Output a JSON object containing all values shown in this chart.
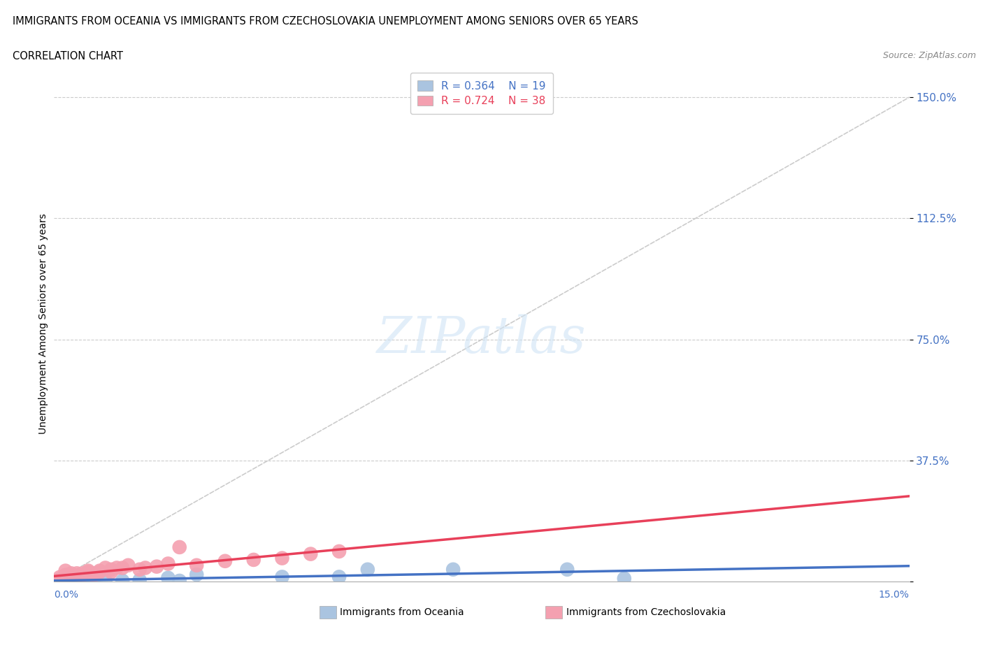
{
  "title_line1": "IMMIGRANTS FROM OCEANIA VS IMMIGRANTS FROM CZECHOSLOVAKIA UNEMPLOYMENT AMONG SENIORS OVER 65 YEARS",
  "title_line2": "CORRELATION CHART",
  "source": "Source: ZipAtlas.com",
  "ylabel": "Unemployment Among Seniors over 65 years",
  "x_lim": [
    0.0,
    0.15
  ],
  "y_lim": [
    0.0,
    1.6
  ],
  "watermark": "ZIPatlas",
  "oceania_R": 0.364,
  "oceania_N": 19,
  "czechoslovakia_R": 0.724,
  "czechoslovakia_N": 38,
  "oceania_color": "#aac4e0",
  "czechoslovakia_color": "#f4a0b0",
  "oceania_line_color": "#4472c4",
  "czechoslovakia_line_color": "#e8405a",
  "diagonal_color": "#cccccc",
  "oceania_x": [
    0.001,
    0.002,
    0.003,
    0.004,
    0.005,
    0.006,
    0.007,
    0.009,
    0.012,
    0.015,
    0.02,
    0.022,
    0.025,
    0.04,
    0.05,
    0.055,
    0.07,
    0.09,
    0.1
  ],
  "oceania_y": [
    0.005,
    0.003,
    0.004,
    0.003,
    0.003,
    0.003,
    0.005,
    0.003,
    0.003,
    0.005,
    0.012,
    0.003,
    0.022,
    0.015,
    0.015,
    0.038,
    0.038,
    0.038,
    0.01
  ],
  "czechoslovakia_x": [
    0.001,
    0.001,
    0.001,
    0.002,
    0.002,
    0.002,
    0.002,
    0.003,
    0.003,
    0.003,
    0.004,
    0.004,
    0.004,
    0.005,
    0.005,
    0.006,
    0.006,
    0.007,
    0.007,
    0.008,
    0.008,
    0.009,
    0.01,
    0.01,
    0.011,
    0.012,
    0.013,
    0.015,
    0.016,
    0.018,
    0.02,
    0.022,
    0.025,
    0.03,
    0.035,
    0.04,
    0.045,
    0.05
  ],
  "czechoslovakia_y": [
    0.004,
    0.008,
    0.014,
    0.013,
    0.021,
    0.017,
    0.034,
    0.017,
    0.021,
    0.026,
    0.013,
    0.017,
    0.026,
    0.021,
    0.026,
    0.03,
    0.034,
    0.021,
    0.026,
    0.03,
    0.034,
    0.043,
    0.03,
    0.038,
    0.043,
    0.043,
    0.051,
    0.038,
    0.043,
    0.047,
    0.056,
    0.107,
    0.051,
    0.064,
    0.068,
    0.073,
    0.086,
    0.094
  ],
  "y_ticks": [
    0.0,
    0.375,
    0.75,
    1.125,
    1.5
  ],
  "y_tick_labels": [
    "",
    "37.5%",
    "75.0%",
    "112.5%",
    "150.0%"
  ],
  "title_fontsize": 10.5,
  "source_fontsize": 9,
  "tick_label_color": "#4472c4",
  "tick_label_fontsize": 11,
  "axis_label_fontsize": 10,
  "legend_fontsize": 11,
  "watermark_fontsize": 52
}
